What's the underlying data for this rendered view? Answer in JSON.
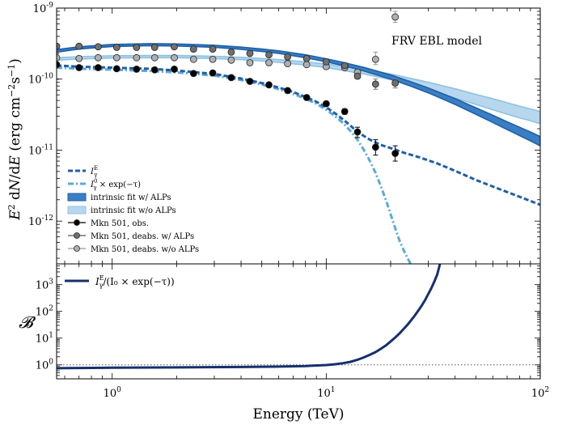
{
  "chart_data": [
    {
      "type": "line",
      "panel": "spectrum",
      "annotation": "FRV EBL model",
      "ylabel": "E^2 dN/dE (erg cm^-2 s^-1)",
      "xlabel": "",
      "xscale": "log",
      "yscale": "log",
      "xlim": [
        0.55,
        100
      ],
      "ylim": [
        2.5e-13,
        1e-09
      ],
      "y_tick_labels": [
        {
          "value": 1e-09,
          "label": "10",
          "exp": "-9"
        },
        {
          "value": 1e-10,
          "label": "10",
          "exp": "-10"
        },
        {
          "value": 1e-11,
          "label": "10",
          "exp": "-11"
        },
        {
          "value": 1e-12,
          "label": "10",
          "exp": "-12"
        }
      ],
      "legend": {
        "placement": "lower-left",
        "entries": [
          {
            "key": "ie",
            "label": "I",
            "sup": "E",
            "sub": "γ",
            "rest": ""
          },
          {
            "key": "i0",
            "label": "I",
            "sup": "0",
            "sub": "γ",
            "rest": " × exp(−τ)"
          },
          {
            "key": "fit_alps",
            "label": "intrinsic fit w/ ALPs",
            "sup": "",
            "sub": "",
            "rest": ""
          },
          {
            "key": "fit_noalps",
            "label": "intrinsic fit w/o ALPs",
            "sup": "",
            "sub": "",
            "rest": ""
          },
          {
            "key": "obs",
            "label": "Mkn 501, obs.",
            "sup": "",
            "sub": "",
            "rest": ""
          },
          {
            "key": "deabs_alps",
            "label": "Mkn 501, deabs. w/ ALPs",
            "sup": "",
            "sub": "",
            "rest": ""
          },
          {
            "key": "deabs_noalps",
            "label": "Mkn 501, deabs. w/o ALPs",
            "sup": "",
            "sub": "",
            "rest": ""
          }
        ]
      },
      "colors": {
        "dark_blue": "#1f5fa8",
        "light_blue": "#8fc1e3",
        "dotdash_blue": "#5aaad8",
        "obs": "#000000",
        "deabs_alps": "#707070",
        "deabs_noalps": "#b0b0b0"
      },
      "series": [
        {
          "name": "I_E",
          "style": "dashed",
          "x": [
            0.55,
            0.7,
            1.0,
            1.5,
            2.0,
            3.0,
            4.0,
            5.0,
            6.0,
            7.0,
            8.0,
            9.0,
            10.0,
            11.0,
            12.0,
            13.0,
            14.0,
            16.0,
            18.0,
            20.0,
            23.0,
            27.0,
            33.0,
            40.0,
            50.0,
            65.0,
            80.0,
            100.0
          ],
          "y": [
            1.55e-10,
            1.5e-10,
            1.45e-10,
            1.4e-10,
            1.32e-10,
            1.18e-10,
            1.02e-10,
            8.8e-11,
            7.6e-11,
            6.6e-11,
            5.6e-11,
            4.8e-11,
            4e-11,
            3.3e-11,
            2.7e-11,
            2.2e-11,
            1.8e-11,
            1.4e-11,
            1.18e-11,
            1.07e-11,
            9.2e-12,
            8e-12,
            6.5e-12,
            5.1e-12,
            3.8e-12,
            2.8e-12,
            2.2e-12,
            1.7e-12
          ]
        },
        {
          "name": "I_0 x exp(-tau)",
          "style": "dashdot",
          "x": [
            0.55,
            0.7,
            1.0,
            1.5,
            2.0,
            3.0,
            4.0,
            5.0,
            6.0,
            7.0,
            8.0,
            9.0,
            10.0,
            11.0,
            12.0,
            13.0,
            14.0,
            15.0,
            16.0,
            17.0,
            18.0,
            19.0,
            20.0,
            21.0,
            22.0,
            23.0,
            24.0,
            24.8
          ],
          "y": [
            1.45e-10,
            1.4e-10,
            1.36e-10,
            1.3e-10,
            1.24e-10,
            1.12e-10,
            9.7e-11,
            8.4e-11,
            7.2e-11,
            6.2e-11,
            5.3e-11,
            4.5e-11,
            3.7e-11,
            3e-11,
            2.4e-11,
            1.85e-11,
            1.4e-11,
            1e-11,
            7e-12,
            4.8e-12,
            3.1e-12,
            2e-12,
            1.25e-12,
            8e-13,
            5.3e-13,
            3.9e-13,
            3e-13,
            2.5e-13
          ]
        },
        {
          "name": "intrinsic fit w/ ALPs",
          "style": "band",
          "x": [
            0.55,
            0.7,
            1.0,
            1.5,
            2.0,
            3.0,
            4.0,
            5.0,
            6.0,
            8.0,
            10.0,
            12.0,
            15.0,
            20.0,
            25.0,
            30.0,
            40.0,
            50.0,
            60.0,
            70.0,
            80.0,
            90.0,
            100.0
          ],
          "y_low": [
            2.4e-10,
            2.65e-10,
            2.88e-10,
            2.96e-10,
            2.93e-10,
            2.8e-10,
            2.62e-10,
            2.45e-10,
            2.3e-10,
            2e-10,
            1.75e-10,
            1.55e-10,
            1.3e-10,
            1e-10,
            7.9e-11,
            6.4e-11,
            4.4e-11,
            3.2e-11,
            2.45e-11,
            1.95e-11,
            1.6e-11,
            1.35e-11,
            1.15e-11
          ],
          "y_high": [
            2.6e-10,
            2.85e-10,
            3.08e-10,
            3.16e-10,
            3.13e-10,
            3e-10,
            2.82e-10,
            2.65e-10,
            2.5e-10,
            2.2e-10,
            1.93e-10,
            1.72e-10,
            1.46e-10,
            1.14e-10,
            9.1e-11,
            7.5e-11,
            5.3e-11,
            3.95e-11,
            3.1e-11,
            2.5e-11,
            2.1e-11,
            1.8e-11,
            1.55e-11
          ]
        },
        {
          "name": "intrinsic fit w/o ALPs",
          "style": "band",
          "x": [
            0.55,
            0.7,
            1.0,
            1.5,
            2.0,
            3.0,
            4.0,
            5.0,
            6.0,
            8.0,
            10.0,
            12.0,
            15.0,
            20.0,
            25.0,
            30.0,
            40.0,
            50.0,
            60.0,
            70.0,
            80.0,
            90.0,
            100.0
          ],
          "y_low": [
            1.85e-10,
            1.92e-10,
            1.98e-10,
            2e-10,
            2e-10,
            1.95e-10,
            1.88e-10,
            1.8e-10,
            1.72e-10,
            1.58e-10,
            1.45e-10,
            1.33e-10,
            1.18e-10,
            9.8e-11,
            8.2e-11,
            7e-11,
            5.4e-11,
            4.4e-11,
            3.7e-11,
            3.2e-11,
            2.85e-11,
            2.6e-11,
            2.35e-11
          ],
          "y_high": [
            2e-10,
            2.07e-10,
            2.13e-10,
            2.15e-10,
            2.15e-10,
            2.1e-10,
            2.03e-10,
            1.95e-10,
            1.88e-10,
            1.75e-10,
            1.63e-10,
            1.52e-10,
            1.38e-10,
            1.18e-10,
            1.02e-10,
            9e-11,
            7.3e-11,
            6.1e-11,
            5.3e-11,
            4.65e-11,
            4.15e-11,
            3.8e-11,
            3.5e-11
          ]
        },
        {
          "name": "Mkn 501, obs.",
          "style": "points",
          "x": [
            0.55,
            0.7,
            0.86,
            1.05,
            1.3,
            1.58,
            1.95,
            2.4,
            2.95,
            3.6,
            4.4,
            5.4,
            6.6,
            8.1,
            10.0,
            12.2,
            14.0,
            17.0,
            21.0
          ],
          "y": [
            1.6e-10,
            1.45e-10,
            1.45e-10,
            1.4e-10,
            1.38e-10,
            1.35e-10,
            1.38e-10,
            1.2e-10,
            1.22e-10,
            1.05e-10,
            9.3e-11,
            8.3e-11,
            6.9e-11,
            5.5e-11,
            4.5e-11,
            3.5e-11,
            1.8e-11,
            1.1e-11,
            9e-12
          ],
          "err_low": [
            1e-10,
            0,
            0,
            0,
            0,
            0,
            0,
            0,
            0,
            0,
            0,
            0,
            0,
            0,
            0,
            3.2e-11,
            1.5e-11,
            8.5e-12,
            7e-12
          ],
          "err_high": [
            2.3e-10,
            0,
            0,
            0,
            0,
            0,
            0,
            0,
            0,
            0,
            0,
            0,
            0,
            0,
            0,
            3.8e-11,
            2.1e-11,
            1.4e-11,
            1.15e-11
          ]
        },
        {
          "name": "Mkn 501, deabs. w/ ALPs",
          "style": "points",
          "x": [
            0.55,
            0.7,
            0.86,
            1.05,
            1.3,
            1.58,
            1.95,
            2.4,
            2.95,
            3.6,
            4.4,
            5.4,
            6.6,
            8.1,
            10.0,
            12.2,
            14.0,
            17.0,
            21.0
          ],
          "y": [
            2.9e-10,
            2.9e-10,
            2.85e-10,
            2.8e-10,
            2.8e-10,
            2.8e-10,
            2.85e-10,
            2.65e-10,
            2.65e-10,
            2.4e-10,
            2.3e-10,
            2.2e-10,
            2.05e-10,
            1.95e-10,
            1.75e-10,
            1.55e-10,
            1.1e-10,
            8.5e-11,
            8.8e-11
          ],
          "err_low": [
            0,
            0,
            0,
            0,
            0,
            0,
            0,
            0,
            0,
            0,
            0,
            0,
            0,
            0,
            0,
            0,
            0,
            7.2e-11,
            7.5e-11
          ],
          "err_high": [
            0,
            0,
            0,
            0,
            0,
            0,
            0,
            0,
            0,
            0,
            0,
            0,
            0,
            0,
            0,
            0,
            0,
            1e-10,
            1.04e-10
          ]
        },
        {
          "name": "Mkn 501, deabs. w/o ALPs",
          "style": "points",
          "x": [
            0.55,
            0.7,
            0.86,
            1.05,
            1.3,
            1.58,
            1.95,
            2.4,
            2.95,
            3.6,
            4.4,
            5.4,
            6.6,
            8.1,
            10.0,
            12.2,
            14.0,
            17.0,
            21.0
          ],
          "y": [
            2e-10,
            1.95e-10,
            2e-10,
            2e-10,
            2e-10,
            2e-10,
            2e-10,
            1.9e-10,
            1.9e-10,
            1.85e-10,
            1.7e-10,
            1.7e-10,
            1.65e-10,
            1.6e-10,
            1.5e-10,
            1.45e-10,
            1.25e-10,
            1.9e-10,
            7.5e-10
          ],
          "err_low": [
            0,
            0,
            0,
            0,
            0,
            0,
            0,
            0,
            0,
            0,
            0,
            0,
            0,
            0,
            0,
            0,
            0,
            1.6e-10,
            6.3e-10
          ],
          "err_high": [
            0,
            0,
            0,
            0,
            0,
            0,
            0,
            0,
            0,
            0,
            0,
            0,
            0,
            0,
            0,
            0,
            0,
            2.4e-10,
            9e-10
          ]
        }
      ]
    },
    {
      "type": "line",
      "panel": "boost",
      "ylabel": "B",
      "xlabel": "Energy (TeV)",
      "xscale": "log",
      "yscale": "log",
      "xlim": [
        0.55,
        100
      ],
      "ylim": [
        0.3,
        6000
      ],
      "x_tick_labels": [
        {
          "value": 1,
          "label": "10",
          "exp": "0"
        },
        {
          "value": 10,
          "label": "10",
          "exp": "1"
        },
        {
          "value": 100,
          "label": "10",
          "exp": "2"
        }
      ],
      "y_tick_labels": [
        {
          "value": 1,
          "label": "10",
          "exp": "0"
        },
        {
          "value": 10,
          "label": "10",
          "exp": "1"
        },
        {
          "value": 100,
          "label": "10",
          "exp": "2"
        },
        {
          "value": 1000,
          "label": "10",
          "exp": "3"
        }
      ],
      "legend": {
        "placement": "top-left",
        "entries": [
          {
            "key": "ratio",
            "label": "I",
            "sup": "E",
            "sub": "γ",
            "rest": "/(I₀ × exp(−τ))"
          }
        ]
      },
      "reference_line": {
        "y": 1.0,
        "style": "dotted"
      },
      "series": [
        {
          "name": "I_E / (I_0 x exp(-tau))",
          "color": "#16306e",
          "x": [
            0.55,
            1.0,
            2.0,
            4.0,
            6.0,
            8.0,
            10.0,
            11.0,
            12.0,
            13.0,
            14.0,
            15.0,
            16.0,
            17.0,
            18.0,
            19.0,
            20.0,
            21.0,
            22.0,
            23.0,
            24.0,
            25.0,
            26.0,
            27.0,
            28.0,
            29.0,
            30.0,
            31.0,
            32.0,
            33.0,
            34.0
          ],
          "y": [
            0.75,
            0.78,
            0.8,
            0.83,
            0.86,
            0.9,
            0.98,
            1.05,
            1.15,
            1.3,
            1.55,
            1.9,
            2.4,
            3.0,
            4.0,
            5.3,
            7.5,
            10.5,
            15.0,
            22.0,
            32.0,
            48.0,
            72.0,
            110.0,
            170.0,
            270.0,
            450.0,
            750.0,
            1300.0,
            2400.0,
            6000.0
          ]
        }
      ]
    }
  ]
}
